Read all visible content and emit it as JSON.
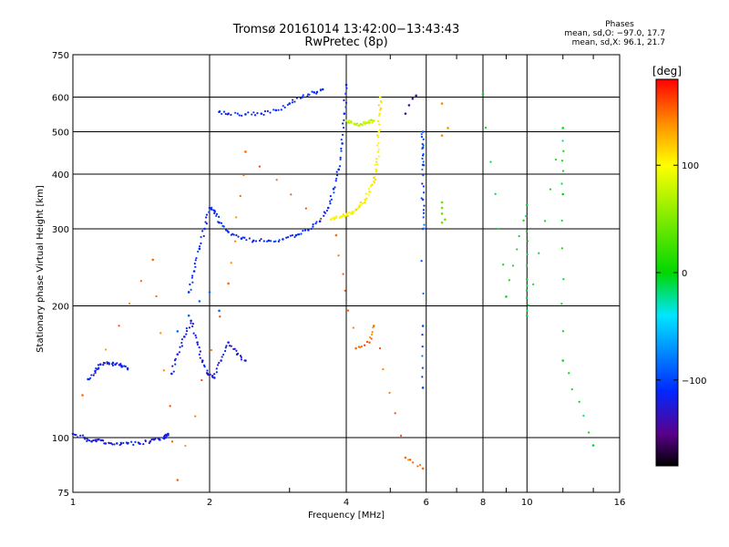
{
  "title_line1": "Tromsø 20161014 13:42:00−13:43:43",
  "title_line2": "RwPretec (8p)",
  "stats": {
    "heading": "Phases",
    "line_o": "mean, sd,O: −97.0, 17.7",
    "line_x": "mean, sd,X:  96.1, 21.7"
  },
  "colorbar": {
    "label": "[deg]",
    "ticks": [
      {
        "value": 100,
        "label": "100"
      },
      {
        "value": 0,
        "label": "0"
      },
      {
        "value": -100,
        "label": "−100"
      }
    ],
    "range": [
      -180,
      180
    ]
  },
  "colors": {
    "grid": "#000000",
    "frame": "#000000"
  },
  "chart_data": {
    "type": "scatter",
    "xlabel": "Frequency [MHz]",
    "ylabel": "Stationary phase Virtual Height [km]",
    "xscale": "log",
    "yscale": "log",
    "xlim": [
      1,
      16
    ],
    "ylim": [
      75,
      750
    ],
    "xticks": [
      {
        "value": 1,
        "label": "1"
      },
      {
        "value": 2,
        "label": "2"
      },
      {
        "value": 4,
        "label": "4"
      },
      {
        "value": 6,
        "label": "6"
      },
      {
        "value": 8,
        "label": "8"
      },
      {
        "value": 10,
        "label": "10"
      },
      {
        "value": 16,
        "label": "16"
      }
    ],
    "yticks": [
      {
        "value": 75,
        "label": "75"
      },
      {
        "value": 100,
        "label": "100"
      },
      {
        "value": 200,
        "label": "200"
      },
      {
        "value": 300,
        "label": "300"
      },
      {
        "value": 400,
        "label": "400"
      },
      {
        "value": 500,
        "label": "500"
      },
      {
        "value": 600,
        "label": "600"
      },
      {
        "value": 750,
        "label": "750"
      }
    ],
    "grid_x": [
      2,
      4,
      6,
      8,
      10
    ],
    "grid_y": [
      100,
      200,
      300,
      400,
      500,
      600
    ],
    "color_by": "phase [deg]",
    "series": [
      {
        "x": [
          1.0,
          1.06,
          1.1,
          1.14,
          1.18,
          1.25,
          1.32,
          1.4,
          1.48,
          1.55,
          1.6,
          1.62
        ],
        "y": [
          102,
          100,
          98,
          99,
          97,
          97,
          97,
          97,
          98,
          99,
          100,
          102
        ],
        "phase": -120
      },
      {
        "x": [
          1.08,
          1.12,
          1.15,
          1.2,
          1.24,
          1.28,
          1.32
        ],
        "y": [
          136,
          142,
          147,
          148,
          147,
          146,
          144
        ],
        "phase": -115
      },
      {
        "x": [
          1.65,
          1.7,
          1.76,
          1.82,
          1.88,
          1.93,
          1.98,
          2.05,
          2.12,
          2.2,
          2.3,
          2.4
        ],
        "y": [
          140,
          155,
          170,
          185,
          165,
          150,
          140,
          137,
          150,
          165,
          155,
          150
        ],
        "phase": -120
      },
      {
        "x": [
          1.7,
          1.8,
          1.9,
          2.0,
          2.1
        ],
        "y": [
          175,
          190,
          205,
          215,
          195
        ],
        "phase": -85
      },
      {
        "x": [
          1.8,
          1.85,
          1.9,
          1.95,
          2.0,
          2.05,
          2.1,
          2.2,
          2.35,
          2.5,
          2.7,
          2.9,
          3.1,
          3.3,
          3.5,
          3.65,
          3.75,
          3.85,
          3.92,
          3.96,
          4.0
        ],
        "y": [
          215,
          240,
          270,
          300,
          335,
          330,
          310,
          295,
          285,
          282,
          282,
          284,
          290,
          298,
          312,
          335,
          370,
          410,
          470,
          550,
          640
        ],
        "phase": -110
      },
      {
        "x": [
          3.7,
          3.8,
          3.9,
          4.0,
          4.1,
          4.2,
          4.3,
          4.4,
          4.5,
          4.6,
          4.65,
          4.7,
          4.72,
          4.74,
          4.75
        ],
        "y": [
          315,
          318,
          320,
          322,
          326,
          332,
          340,
          350,
          365,
          385,
          410,
          450,
          500,
          550,
          600
        ],
        "phase": 105
      },
      {
        "x": [
          2.1,
          2.2,
          2.4,
          2.6,
          2.8,
          3.0,
          3.2,
          3.4,
          3.55
        ],
        "y": [
          555,
          550,
          548,
          550,
          560,
          580,
          600,
          615,
          625
        ],
        "phase": -110
      },
      {
        "x": [
          4.0,
          4.1,
          4.2,
          4.3,
          4.4,
          4.5,
          4.6
        ],
        "y": [
          530,
          525,
          520,
          520,
          522,
          525,
          530
        ],
        "phase": 75
      },
      {
        "x": [
          5.4,
          5.5,
          5.6,
          5.7
        ],
        "y": [
          550,
          575,
          595,
          605
        ],
        "phase": -140
      },
      {
        "x": [
          5.9,
          5.9,
          5.9,
          5.9,
          5.9,
          5.9,
          5.9
        ],
        "y": [
          300,
          350,
          420,
          460,
          500,
          180,
          130
        ],
        "phase": -95
      },
      {
        "x": [
          6.5,
          6.5,
          6.5,
          6.5,
          6.6
        ],
        "y": [
          345,
          335,
          325,
          310,
          315
        ],
        "phase": 40
      },
      {
        "x": [
          6.5,
          6.5,
          6.7
        ],
        "y": [
          580,
          490,
          510
        ],
        "phase": 140
      },
      {
        "x": [
          8.0,
          9.0,
          10.0,
          10.0,
          10.0,
          12.0,
          12.0,
          12.0,
          14.0
        ],
        "y": [
          610,
          210,
          340,
          230,
          190,
          510,
          360,
          150,
          96
        ],
        "phase": -5
      },
      {
        "x": [
          1.05,
          1.5,
          1.7,
          2.2,
          2.4,
          3.8,
          4.2,
          4.5,
          4.6,
          5.4,
          5.9
        ],
        "y": [
          125,
          255,
          80,
          225,
          450,
          290,
          160,
          165,
          180,
          90,
          85
        ],
        "phase": 150
      }
    ]
  }
}
